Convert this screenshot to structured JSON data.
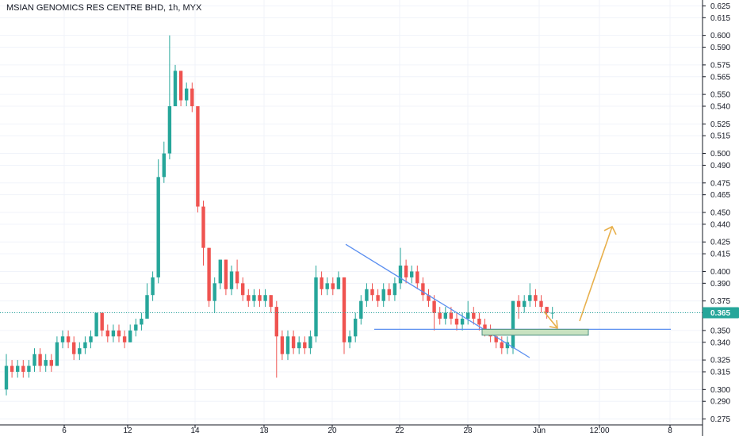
{
  "header": {
    "title": "MSIAN GENOMICS RES CENTRE BHD, 1h, MYX"
  },
  "colors": {
    "up": "#26a69a",
    "down": "#ef5350",
    "last_price": "#26a69a",
    "trendline": "#5b8ff0",
    "support": "#5b8ff0",
    "arrow": "#e8b04c",
    "zone_fill": "#c8e2c0",
    "zone_border": "#4a8f80",
    "grid": "#f0f3fa",
    "axis_text": "#131722"
  },
  "chart_data": {
    "type": "candlestick",
    "title": "MSIAN GENOMICS RES CENTRE BHD, 1h, MYX",
    "ylim": [
      0.27,
      0.63
    ],
    "y_ticks": [
      "0.275",
      "0.290",
      "0.300",
      "0.315",
      "0.325",
      "0.340",
      "0.350",
      "0.365",
      "0.375",
      "0.390",
      "0.400",
      "0.415",
      "0.425",
      "0.440",
      "0.450",
      "0.465",
      "0.475",
      "0.490",
      "0.500",
      "0.515",
      "0.525",
      "0.540",
      "0.550",
      "0.565",
      "0.575",
      "0.590",
      "0.600",
      "0.615",
      "0.625"
    ],
    "x_ticks": [
      "6",
      "12",
      "14",
      "18",
      "20",
      "22",
      "26",
      "28",
      "Jun",
      "12:00",
      "8"
    ],
    "last_price": "0.365",
    "candles": [
      [
        0.3,
        0.32,
        0.33,
        0.295
      ],
      [
        0.32,
        0.315,
        0.325,
        0.31
      ],
      [
        0.315,
        0.32,
        0.325,
        0.31
      ],
      [
        0.32,
        0.315,
        0.325,
        0.31
      ],
      [
        0.315,
        0.32,
        0.325,
        0.31
      ],
      [
        0.32,
        0.33,
        0.335,
        0.315
      ],
      [
        0.33,
        0.32,
        0.335,
        0.315
      ],
      [
        0.32,
        0.325,
        0.33,
        0.315
      ],
      [
        0.325,
        0.32,
        0.33,
        0.315
      ],
      [
        0.32,
        0.34,
        0.345,
        0.32
      ],
      [
        0.34,
        0.345,
        0.35,
        0.335
      ],
      [
        0.345,
        0.34,
        0.35,
        0.335
      ],
      [
        0.34,
        0.33,
        0.345,
        0.325
      ],
      [
        0.33,
        0.335,
        0.34,
        0.325
      ],
      [
        0.335,
        0.34,
        0.345,
        0.33
      ],
      [
        0.34,
        0.345,
        0.35,
        0.335
      ],
      [
        0.345,
        0.365,
        0.365,
        0.345
      ],
      [
        0.365,
        0.35,
        0.365,
        0.345
      ],
      [
        0.35,
        0.345,
        0.355,
        0.34
      ],
      [
        0.345,
        0.35,
        0.355,
        0.34
      ],
      [
        0.35,
        0.345,
        0.355,
        0.34
      ],
      [
        0.345,
        0.34,
        0.35,
        0.335
      ],
      [
        0.34,
        0.35,
        0.355,
        0.34
      ],
      [
        0.35,
        0.355,
        0.36,
        0.345
      ],
      [
        0.355,
        0.36,
        0.365,
        0.35
      ],
      [
        0.36,
        0.38,
        0.39,
        0.36
      ],
      [
        0.38,
        0.395,
        0.4,
        0.375
      ],
      [
        0.395,
        0.48,
        0.495,
        0.39
      ],
      [
        0.48,
        0.5,
        0.51,
        0.475
      ],
      [
        0.5,
        0.54,
        0.6,
        0.495
      ],
      [
        0.54,
        0.57,
        0.575,
        0.54
      ],
      [
        0.57,
        0.545,
        0.57,
        0.54
      ],
      [
        0.545,
        0.555,
        0.56,
        0.54
      ],
      [
        0.555,
        0.54,
        0.56,
        0.535
      ],
      [
        0.54,
        0.455,
        0.54,
        0.45
      ],
      [
        0.455,
        0.42,
        0.46,
        0.405
      ],
      [
        0.42,
        0.375,
        0.42,
        0.37
      ],
      [
        0.375,
        0.39,
        0.395,
        0.365
      ],
      [
        0.39,
        0.41,
        0.41,
        0.385
      ],
      [
        0.41,
        0.385,
        0.41,
        0.38
      ],
      [
        0.385,
        0.4,
        0.405,
        0.38
      ],
      [
        0.4,
        0.39,
        0.41,
        0.385
      ],
      [
        0.39,
        0.38,
        0.395,
        0.375
      ],
      [
        0.38,
        0.375,
        0.385,
        0.37
      ],
      [
        0.375,
        0.38,
        0.385,
        0.37
      ],
      [
        0.38,
        0.375,
        0.385,
        0.37
      ],
      [
        0.375,
        0.38,
        0.385,
        0.37
      ],
      [
        0.38,
        0.37,
        0.38,
        0.365
      ],
      [
        0.37,
        0.345,
        0.375,
        0.31
      ],
      [
        0.345,
        0.33,
        0.35,
        0.325
      ],
      [
        0.33,
        0.345,
        0.35,
        0.325
      ],
      [
        0.345,
        0.335,
        0.35,
        0.33
      ],
      [
        0.335,
        0.34,
        0.345,
        0.33
      ],
      [
        0.34,
        0.335,
        0.345,
        0.33
      ],
      [
        0.335,
        0.345,
        0.35,
        0.33
      ],
      [
        0.345,
        0.395,
        0.405,
        0.34
      ],
      [
        0.395,
        0.385,
        0.4,
        0.38
      ],
      [
        0.385,
        0.39,
        0.395,
        0.38
      ],
      [
        0.39,
        0.385,
        0.395,
        0.38
      ],
      [
        0.385,
        0.395,
        0.4,
        0.385
      ],
      [
        0.395,
        0.34,
        0.395,
        0.33
      ],
      [
        0.34,
        0.345,
        0.35,
        0.335
      ],
      [
        0.345,
        0.36,
        0.365,
        0.34
      ],
      [
        0.36,
        0.375,
        0.38,
        0.355
      ],
      [
        0.375,
        0.385,
        0.39,
        0.37
      ],
      [
        0.385,
        0.38,
        0.39,
        0.375
      ],
      [
        0.38,
        0.375,
        0.385,
        0.37
      ],
      [
        0.375,
        0.385,
        0.39,
        0.37
      ],
      [
        0.385,
        0.38,
        0.39,
        0.375
      ],
      [
        0.38,
        0.39,
        0.395,
        0.375
      ],
      [
        0.39,
        0.405,
        0.42,
        0.385
      ],
      [
        0.405,
        0.395,
        0.41,
        0.39
      ],
      [
        0.395,
        0.4,
        0.405,
        0.39
      ],
      [
        0.4,
        0.39,
        0.405,
        0.385
      ],
      [
        0.39,
        0.38,
        0.395,
        0.375
      ],
      [
        0.38,
        0.375,
        0.385,
        0.37
      ],
      [
        0.375,
        0.365,
        0.38,
        0.35
      ],
      [
        0.365,
        0.36,
        0.37,
        0.355
      ],
      [
        0.36,
        0.365,
        0.37,
        0.355
      ],
      [
        0.365,
        0.36,
        0.37,
        0.355
      ],
      [
        0.36,
        0.355,
        0.365,
        0.35
      ],
      [
        0.355,
        0.36,
        0.365,
        0.35
      ],
      [
        0.36,
        0.365,
        0.375,
        0.355
      ],
      [
        0.365,
        0.36,
        0.37,
        0.355
      ],
      [
        0.36,
        0.355,
        0.365,
        0.35
      ],
      [
        0.355,
        0.35,
        0.36,
        0.345
      ],
      [
        0.35,
        0.345,
        0.355,
        0.34
      ],
      [
        0.345,
        0.34,
        0.35,
        0.335
      ],
      [
        0.34,
        0.335,
        0.345,
        0.33
      ],
      [
        0.335,
        0.34,
        0.345,
        0.33
      ],
      [
        0.335,
        0.375,
        0.375,
        0.33
      ],
      [
        0.375,
        0.37,
        0.38,
        0.36
      ],
      [
        0.37,
        0.375,
        0.38,
        0.365
      ],
      [
        0.375,
        0.38,
        0.39,
        0.37
      ],
      [
        0.38,
        0.375,
        0.385,
        0.37
      ],
      [
        0.375,
        0.37,
        0.38,
        0.365
      ],
      [
        0.37,
        0.365,
        0.37,
        0.36
      ],
      [
        0.365,
        0.365,
        0.37,
        0.36
      ]
    ],
    "annotations": {
      "descending_trendline": [
        [
          21,
          0.423
        ],
        [
          28.8,
          0.335
        ]
      ],
      "support_line": {
        "price": 0.351,
        "x_from": 21.3,
        "x_to": 31.6
      },
      "demand_zone": {
        "x_from": 28.8,
        "x_to": 30.5,
        "y_from": 0.346,
        "y_to": 0.351
      },
      "projection_arrow_down": [
        [
          29.1,
          0.366
        ],
        [
          29.4,
          0.352
        ]
      ],
      "projection_arrow_up": [
        [
          30.2,
          0.358
        ],
        [
          30.9,
          0.438
        ]
      ]
    }
  }
}
